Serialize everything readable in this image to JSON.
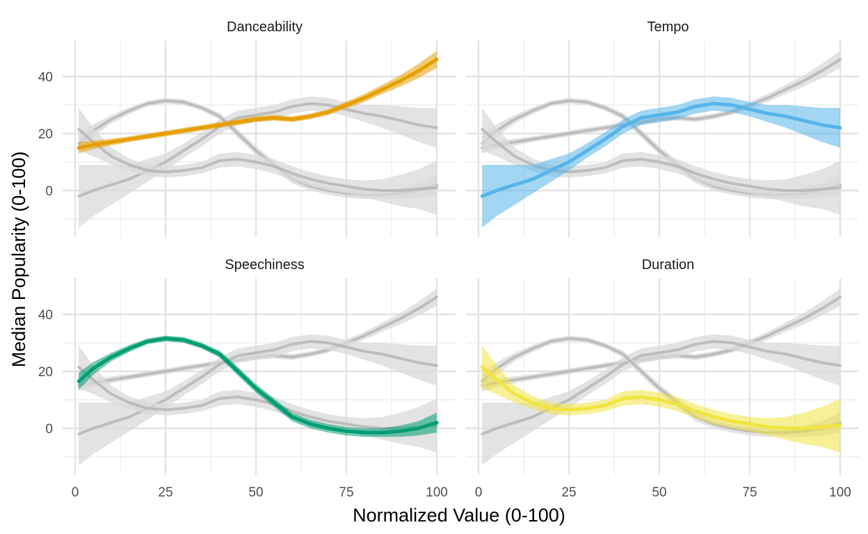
{
  "chart_data": {
    "type": "line",
    "xlabel": "Normalized Value (0-100)",
    "ylabel": "Median Popularity (0-100)",
    "xlim": [
      0,
      100
    ],
    "ylim": [
      -15,
      50
    ],
    "x_ticks": [
      0,
      25,
      50,
      75,
      100
    ],
    "x_tick_labels": [
      "0",
      "25",
      "50",
      "75",
      "100"
    ],
    "y_ticks": [
      0,
      20,
      40
    ],
    "y_tick_labels": [
      "0",
      "20",
      "40"
    ],
    "grid": true,
    "legend": "none",
    "background_series_color": "#b3b3b3",
    "band_color": "#d9d9d9",
    "series": [
      {
        "name": "Danceability",
        "color": "#E69F00",
        "x": [
          1,
          5,
          10,
          15,
          20,
          25,
          30,
          35,
          40,
          45,
          50,
          55,
          60,
          65,
          70,
          75,
          80,
          85,
          90,
          95,
          100
        ],
        "y": [
          15,
          16,
          17,
          18,
          19,
          20,
          21,
          22,
          23,
          24,
          25,
          25.5,
          25,
          26,
          27.5,
          30,
          32.5,
          35.5,
          38.5,
          42,
          46
        ],
        "band": [
          2,
          1.5,
          1.2,
          1,
          1,
          1,
          1,
          1,
          1,
          1,
          1,
          1,
          1,
          1,
          1,
          1.2,
          1.4,
          1.6,
          2,
          2.5,
          3
        ]
      },
      {
        "name": "Tempo",
        "color": "#56B4E9",
        "x": [
          1,
          5,
          10,
          15,
          20,
          25,
          30,
          35,
          40,
          45,
          50,
          55,
          60,
          65,
          70,
          75,
          80,
          85,
          90,
          95,
          100
        ],
        "y": [
          -2,
          0,
          2,
          4,
          7,
          10,
          14,
          18,
          22.5,
          25.5,
          26.5,
          27.5,
          29.5,
          30.5,
          30,
          28.5,
          27,
          26,
          24.5,
          23,
          22
        ],
        "band": [
          11,
          9,
          7,
          5,
          4,
          3,
          2.5,
          2.5,
          2.5,
          2.5,
          2.5,
          2.5,
          2.5,
          2.5,
          2.5,
          2.5,
          3,
          4,
          5,
          6,
          7
        ]
      },
      {
        "name": "Speechiness",
        "color": "#009E73",
        "x": [
          1,
          5,
          10,
          15,
          20,
          25,
          30,
          35,
          40,
          45,
          50,
          55,
          60,
          65,
          70,
          75,
          80,
          85,
          90,
          95,
          100
        ],
        "y": [
          16.5,
          21,
          25,
          28,
          30.5,
          31.5,
          31,
          29,
          26,
          20,
          14,
          9,
          4,
          1.5,
          0,
          -1,
          -1.5,
          -1.5,
          -1,
          0,
          2
        ],
        "band": [
          3,
          2.2,
          1.5,
          1.2,
          1,
          1,
          1,
          1,
          1.2,
          1.5,
          1.5,
          1.5,
          1.5,
          1.5,
          1.5,
          1.5,
          1.5,
          1.5,
          2,
          2.5,
          3.5
        ]
      },
      {
        "name": "Duration",
        "color": "#F0E442",
        "x": [
          1,
          5,
          10,
          15,
          20,
          25,
          30,
          35,
          40,
          45,
          50,
          55,
          60,
          65,
          70,
          75,
          80,
          85,
          90,
          95,
          100
        ],
        "y": [
          21.5,
          17,
          12,
          9,
          7,
          6.5,
          7,
          8,
          10.5,
          11,
          10,
          8.5,
          6,
          4,
          2.5,
          1.5,
          0.5,
          0,
          0,
          0.5,
          1
        ],
        "band": [
          7.5,
          5,
          3,
          2.2,
          2,
          2,
          2,
          2,
          2.5,
          2.5,
          2.5,
          2.5,
          2.5,
          2.5,
          2.5,
          2.5,
          3,
          4,
          5.5,
          7,
          9.5
        ]
      }
    ],
    "panels": [
      {
        "title": "Danceability",
        "highlight": 0
      },
      {
        "title": "Tempo",
        "highlight": 1
      },
      {
        "title": "Speechiness",
        "highlight": 2
      },
      {
        "title": "Duration",
        "highlight": 3
      }
    ]
  }
}
